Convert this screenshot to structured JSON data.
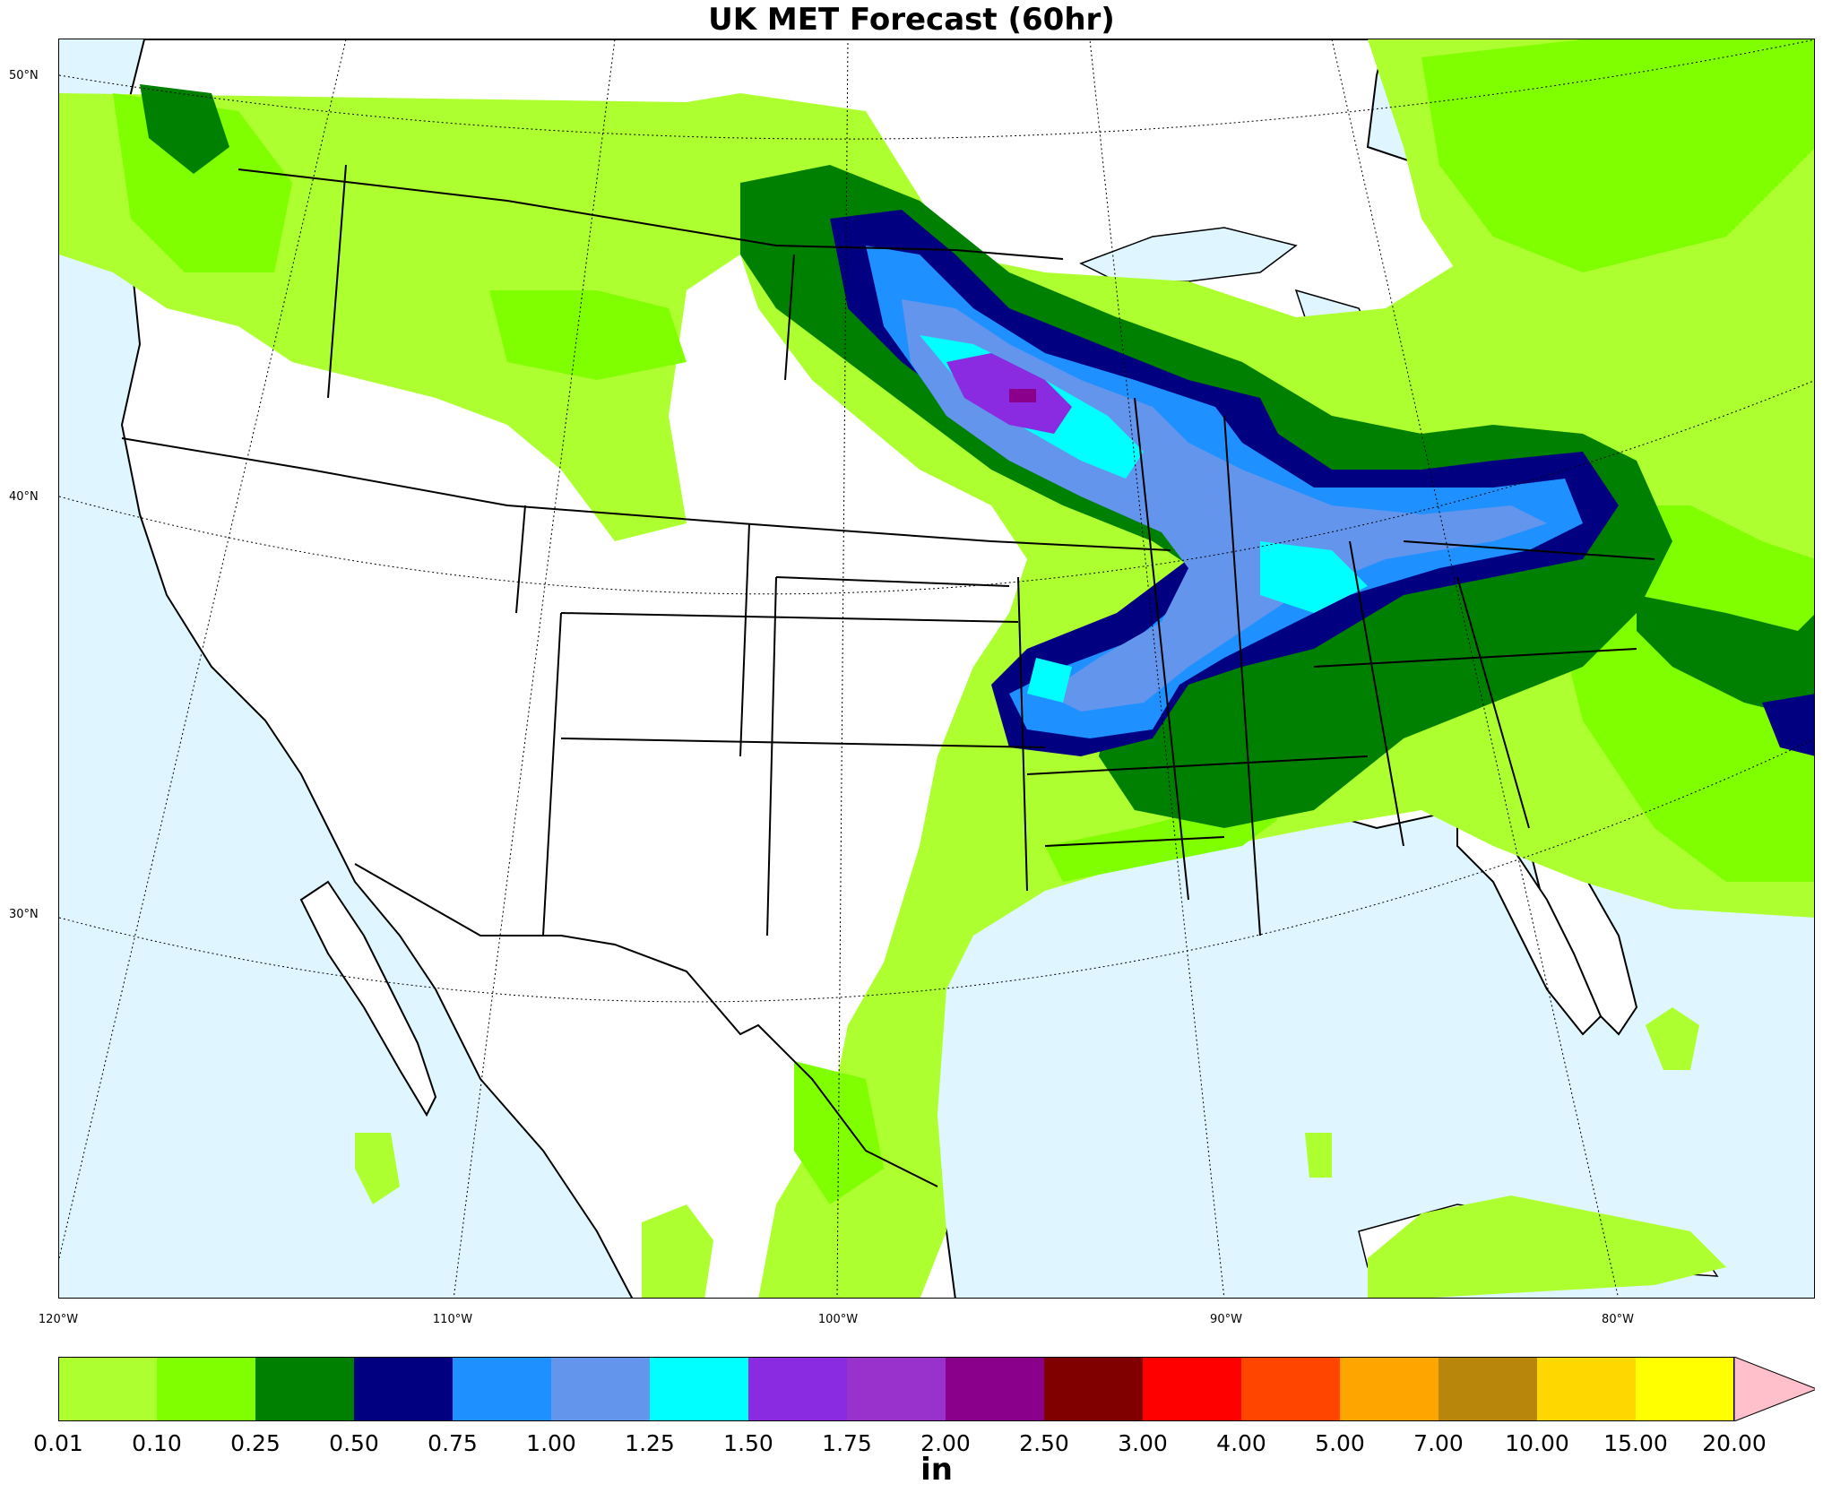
{
  "title": "UK MET Forecast (60hr)",
  "lat_labels": [
    "50°N",
    "40°N",
    "30°N"
  ],
  "lon_labels": [
    "120°W",
    "110°W",
    "100°W",
    "90°W",
    "80°W"
  ],
  "colorbar": {
    "unit": "in",
    "ticks": [
      "0.01",
      "0.10",
      "0.25",
      "0.50",
      "0.75",
      "1.00",
      "1.25",
      "1.50",
      "1.75",
      "2.00",
      "2.50",
      "3.00",
      "4.00",
      "5.00",
      "7.00",
      "10.00",
      "15.00",
      "20.00"
    ],
    "colors": [
      "#adff2f",
      "#7fff00",
      "#008000",
      "#000080",
      "#1e90ff",
      "#6495ed",
      "#00ffff",
      "#8a2be2",
      "#9932cc",
      "#8b008b",
      "#800000",
      "#ff0000",
      "#ff4500",
      "#ffa500",
      "#b8860b",
      "#ffd700",
      "#ffff00"
    ],
    "extend_color": "#ffc0cb"
  },
  "colors": {
    "ocean": "#dff5ff",
    "land": "#ffffff"
  }
}
